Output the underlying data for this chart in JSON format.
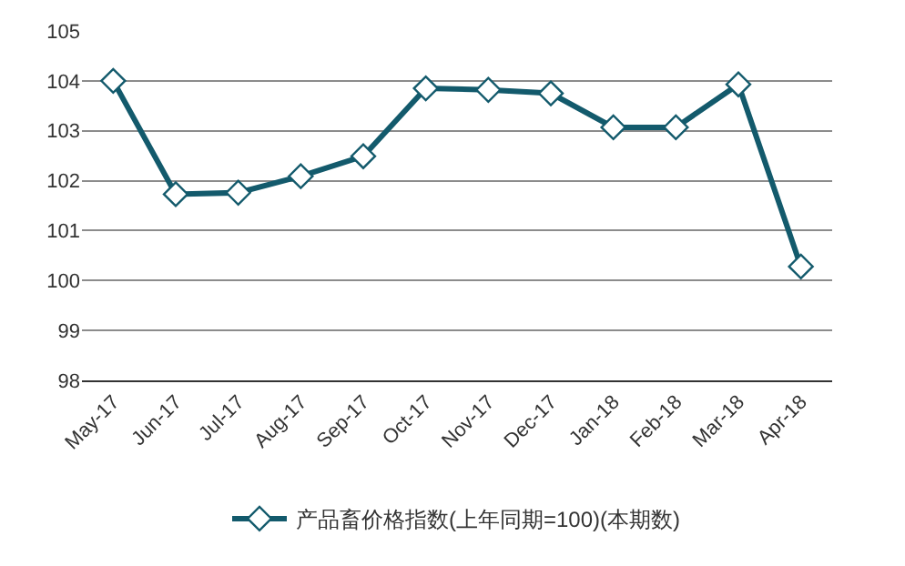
{
  "chart_data": {
    "type": "line",
    "categories": [
      "May-17",
      "Jun-17",
      "Jul-17",
      "Aug-17",
      "Sep-17",
      "Oct-17",
      "Nov-17",
      "Dec-17",
      "Jan-18",
      "Feb-18",
      "Mar-18",
      "Apr-18"
    ],
    "series": [
      {
        "name": "产品畜价格指数(上年同期=100)(本期数)",
        "color": "#135a6c",
        "values": [
          104.0,
          101.73,
          101.76,
          102.09,
          102.49,
          103.85,
          103.82,
          103.75,
          103.07,
          103.07,
          103.93,
          100.28
        ]
      }
    ],
    "ylim": [
      98,
      105
    ],
    "yticks": [
      98,
      99,
      100,
      101,
      102,
      103,
      104,
      105
    ],
    "grid": "y",
    "legend": "bottom",
    "marker": "diamond",
    "line_style": "solid"
  }
}
